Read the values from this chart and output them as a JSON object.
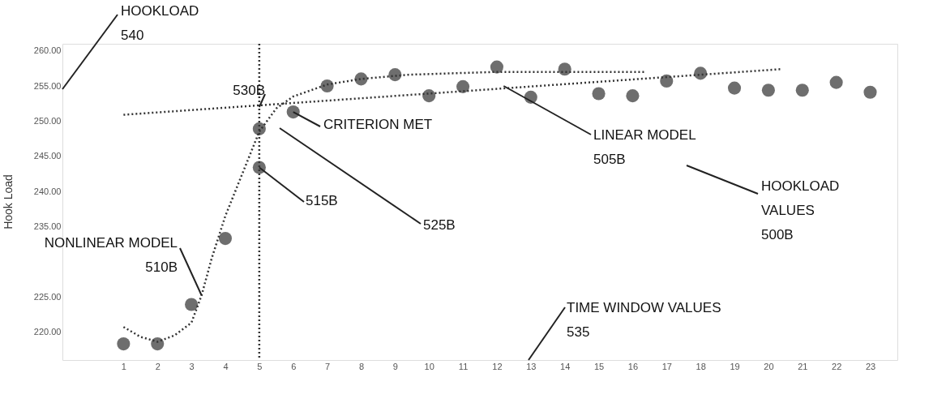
{
  "chart_data": {
    "type": "scatter",
    "ylabel": "Hook Load",
    "xlim": [
      -0.8,
      23.8
    ],
    "xticks": [
      1,
      2,
      3,
      4,
      5,
      6,
      7,
      8,
      9,
      10,
      11,
      12,
      13,
      14,
      15,
      16,
      17,
      18,
      19,
      20,
      21,
      22,
      23
    ],
    "ylim": [
      216,
      261
    ],
    "yticks": [
      {
        "value": 220,
        "label": "220.00"
      },
      {
        "value": 225,
        "label": "225.00"
      },
      {
        "value": 235,
        "label": "235.00"
      },
      {
        "value": 240,
        "label": "240.00"
      },
      {
        "value": 245,
        "label": "245.00"
      },
      {
        "value": 250,
        "label": "250.00"
      },
      {
        "value": 255,
        "label": "255.00"
      },
      {
        "value": 260,
        "label": "260.00"
      }
    ],
    "series": [
      {
        "color": "#555555",
        "marker": "circle",
        "x": [
          1,
          2,
          3,
          4,
          5,
          5,
          6,
          7,
          8,
          9,
          10,
          11,
          12,
          13,
          14,
          15,
          16,
          17,
          18,
          19,
          20,
          21,
          22,
          23
        ],
        "values": [
          218.3,
          218.3,
          223.9,
          233.3,
          248.9,
          243.4,
          251.3,
          255.0,
          256.0,
          256.6,
          253.6,
          254.9,
          257.7,
          253.4,
          257.4,
          253.9,
          253.6,
          255.7,
          256.8,
          254.7,
          254.4,
          254.4,
          255.5,
          254.1
        ]
      },
      {
        "type": "line",
        "color": "#333333",
        "line_style": "dotted",
        "x": [
          1,
          20.4
        ],
        "values": [
          250.9,
          257.4
        ]
      },
      {
        "type": "line",
        "color": "#333333",
        "line_style": "dotted",
        "x": [
          1,
          1.5,
          2,
          2.5,
          3,
          3.3,
          3.6,
          4,
          4.5,
          5,
          5.5,
          6,
          7,
          8,
          9.4,
          12,
          16.4
        ],
        "values": [
          220.7,
          219.3,
          218.6,
          219.5,
          221.3,
          225.2,
          230.5,
          236.5,
          242.5,
          248.5,
          251.8,
          253.5,
          255.2,
          256.0,
          256.6,
          257.0,
          257.0
        ]
      }
    ],
    "ref_lines": [
      {
        "axis": "x",
        "value": 5,
        "color": "#333333",
        "line_style": "dotted"
      }
    ],
    "annotations": [
      "HOOKLOAD\n540",
      {
        "text": "530B",
        "x": 5,
        "y": 252
      },
      {
        "text": "CRITERION MET",
        "x": 6,
        "y": 251.3
      },
      {
        "text": "LINEAR MODEL\n505B",
        "x": 12.2,
        "y": 255.0
      },
      "HOOKLOAD\nVALUES\n500B",
      {
        "text": "515B",
        "x": 5,
        "y": 243.4
      },
      "525B",
      {
        "text": "NONLINEAR MODEL\n510B",
        "x": 3.3,
        "y": 225.2
      },
      "TIME WINDOW VALUES\n535"
    ],
    "grid": false
  }
}
